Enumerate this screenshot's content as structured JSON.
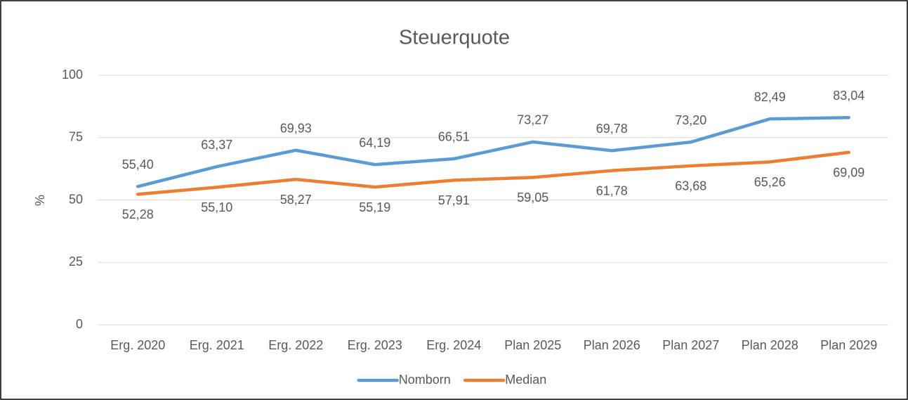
{
  "chart_data": {
    "type": "line",
    "title": "Steuerquote",
    "y_label": "%",
    "categories": [
      "Erg. 2020",
      "Erg. 2021",
      "Erg. 2022",
      "Erg. 2023",
      "Erg. 2024",
      "Plan 2025",
      "Plan 2026",
      "Plan 2027",
      "Plan 2028",
      "Plan 2029"
    ],
    "series": [
      {
        "name": "Nomborn",
        "color": "#5b9bd5",
        "values": [
          55.4,
          63.37,
          69.93,
          64.19,
          66.51,
          73.27,
          69.78,
          73.2,
          82.49,
          83.04
        ],
        "value_labels": [
          "55,40",
          "63,37",
          "69,93",
          "64,19",
          "66,51",
          "73,27",
          "69,78",
          "73,20",
          "82,49",
          "83,04"
        ]
      },
      {
        "name": "Median",
        "color": "#ed7d31",
        "values": [
          52.28,
          55.1,
          58.27,
          55.19,
          57.91,
          59.05,
          61.78,
          63.68,
          65.26,
          69.09
        ],
        "value_labels": [
          "52,28",
          "55,10",
          "58,27",
          "55,19",
          "57,91",
          "59,05",
          "61,78",
          "63,68",
          "65,26",
          "69,09"
        ]
      }
    ],
    "ylim": [
      0,
      100
    ],
    "yticks": [
      0,
      25,
      50,
      75,
      100
    ],
    "grid": true,
    "legend": "bottom"
  }
}
